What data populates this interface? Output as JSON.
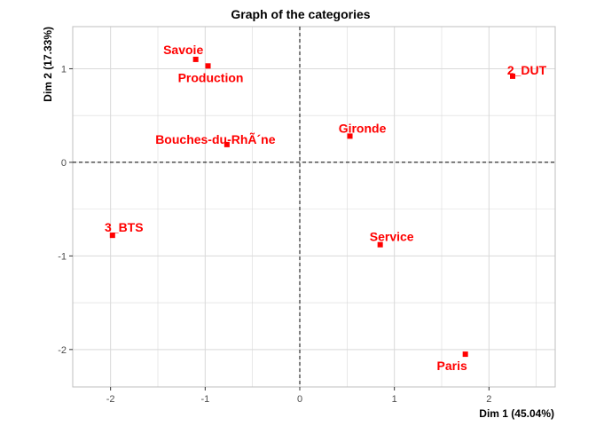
{
  "chart_data": {
    "type": "scatter",
    "title": "Graph of the categories",
    "xlabel": "Dim 1 (45.04%)",
    "ylabel": "Dim 2 (17.33%)",
    "xlim": [
      -2.4,
      2.7
    ],
    "ylim": [
      -2.4,
      1.45
    ],
    "xticks": [
      -2,
      -1,
      0,
      1,
      2
    ],
    "yticks": [
      -2,
      -1,
      0,
      1
    ],
    "xtick_labels": [
      "-2",
      "-1",
      "0",
      "1",
      "2"
    ],
    "ytick_labels": [
      "-2",
      "-1",
      "0",
      "1"
    ],
    "grid": true,
    "reference_lines": [
      0,
      0
    ],
    "point_color": "#ff0000",
    "background": "#ffffff",
    "grid_color": "#d9d9d9",
    "points": [
      {
        "label": "Savoie",
        "x": -1.1,
        "y": 1.1
      },
      {
        "label": "Production",
        "x": -0.97,
        "y": 1.03
      },
      {
        "label": "2_DUT",
        "x": 2.25,
        "y": 0.92
      },
      {
        "label": "Gironde",
        "x": 0.53,
        "y": 0.28
      },
      {
        "label": "Bouches-du-RhÃ´ne",
        "x": -0.77,
        "y": 0.19
      },
      {
        "label": "3_BTS",
        "x": -1.98,
        "y": -0.78
      },
      {
        "label": "Service",
        "x": 0.85,
        "y": -0.88
      },
      {
        "label": "Paris",
        "x": 1.75,
        "y": -2.05
      }
    ]
  }
}
